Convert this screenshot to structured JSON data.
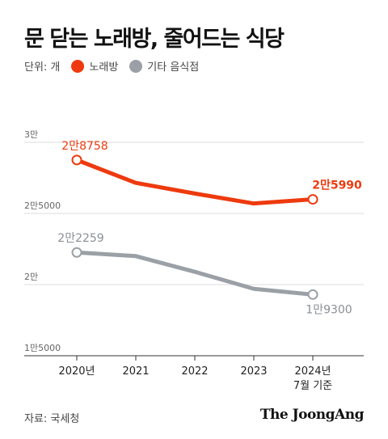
{
  "title": "문 닫는 노래방, 줄어드는 식당",
  "legend": {
    "unit": "단위: 개",
    "items": [
      {
        "label": "노래방",
        "color": "#ee3a0e"
      },
      {
        "label": "기타 음식점",
        "color": "#9aa0a6"
      }
    ]
  },
  "source": "자료: 국세청",
  "brand": "The JoongAng",
  "chart_data": {
    "type": "line",
    "x": [
      "2020년",
      "2021",
      "2022",
      "2023",
      "2024년\n7월 기준"
    ],
    "ylim": [
      15000,
      30000
    ],
    "ytick_values": [
      15000,
      20000,
      25000,
      30000
    ],
    "ytick_labels": [
      "1만5000",
      "2만",
      "2만5000",
      "3만"
    ],
    "series": [
      {
        "name": "노래방",
        "color": "#ee3a0e",
        "values": [
          28758,
          27150,
          26400,
          25700,
          25990
        ],
        "labels": [
          {
            "index": 0,
            "text": "2만8758"
          },
          {
            "index": 4,
            "text": "2만5990"
          }
        ]
      },
      {
        "name": "기타 음식점",
        "color": "#9aa0a6",
        "values": [
          22259,
          22000,
          20900,
          19700,
          19300
        ],
        "labels": [
          {
            "index": 0,
            "text": "2만2259"
          },
          {
            "index": 4,
            "text": "1만9300"
          }
        ]
      }
    ]
  }
}
